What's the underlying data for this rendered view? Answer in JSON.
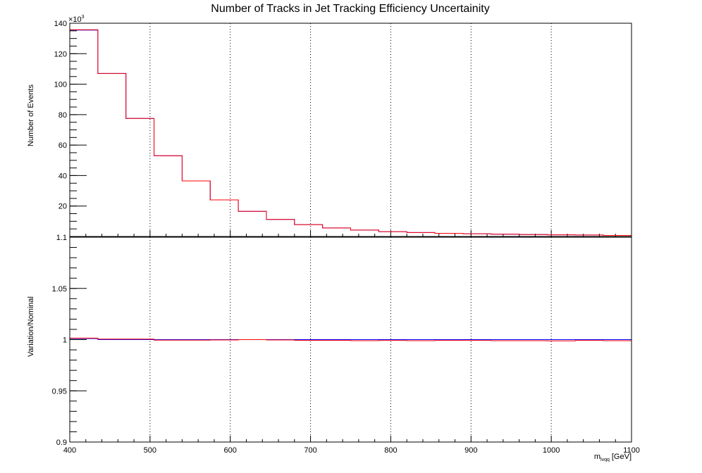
{
  "chart_data": [
    {
      "type": "line",
      "title": "Number of Tracks in Jet Tracking Efficiency Uncertainity",
      "xlabel": "",
      "ylabel": "Number of Events",
      "y_exponent_label": "×10",
      "y_exponent_power": "3",
      "xlim": [
        400,
        1100
      ],
      "ylim": [
        0,
        140
      ],
      "yticks": [
        {
          "value": 20,
          "label": "20"
        },
        {
          "value": 40,
          "label": "40"
        },
        {
          "value": 60,
          "label": "60"
        },
        {
          "value": 80,
          "label": "80"
        },
        {
          "value": 100,
          "label": "100"
        },
        {
          "value": 120,
          "label": "120"
        },
        {
          "value": 140,
          "label": "140"
        }
      ],
      "grid": "vertical-dotted",
      "bin_edges": [
        400,
        435,
        470,
        505,
        540,
        575,
        610,
        645,
        680,
        715,
        750,
        785,
        820,
        855,
        890,
        925,
        960,
        995,
        1030,
        1065,
        1100
      ],
      "series": [
        {
          "color": "#0000ff",
          "values": [
            135.5,
            107.0,
            77.5,
            53.0,
            36.5,
            24.0,
            16.5,
            11.2,
            7.8,
            5.6,
            4.2,
            3.2,
            2.6,
            2.1,
            1.8,
            1.5,
            1.3,
            1.1,
            1.0,
            0.7
          ]
        },
        {
          "color": "#ff0000",
          "values": [
            135.7,
            107.0,
            77.5,
            53.0,
            36.5,
            24.0,
            16.5,
            11.2,
            7.8,
            5.6,
            4.2,
            3.2,
            2.6,
            2.1,
            1.8,
            1.5,
            1.3,
            1.1,
            1.0,
            0.7
          ]
        }
      ]
    },
    {
      "type": "line",
      "title": "",
      "xlabel": "m",
      "xlabel_sub": "lvqq",
      "xlabel_unit": "[GeV]",
      "ylabel": "Variation/Nominal",
      "xlim": [
        400,
        1100
      ],
      "ylim": [
        0.9,
        1.1
      ],
      "xticks": [
        {
          "value": 400,
          "label": "400"
        },
        {
          "value": 500,
          "label": "500"
        },
        {
          "value": 600,
          "label": "600"
        },
        {
          "value": 700,
          "label": "700"
        },
        {
          "value": 800,
          "label": "800"
        },
        {
          "value": 900,
          "label": "900"
        },
        {
          "value": 1000,
          "label": "1000"
        },
        {
          "value": 1100,
          "label": "1100"
        }
      ],
      "yticks": [
        {
          "value": 0.9,
          "label": "0.9"
        },
        {
          "value": 0.95,
          "label": "0.95"
        },
        {
          "value": 1.0,
          "label": "1"
        },
        {
          "value": 1.05,
          "label": "1.05"
        },
        {
          "value": 1.1,
          "label": "1.1"
        }
      ],
      "grid": "vertical-dotted",
      "bin_edges": [
        400,
        435,
        470,
        505,
        540,
        575,
        610,
        645,
        680,
        715,
        750,
        785,
        820,
        855,
        890,
        925,
        960,
        995,
        1030,
        1065,
        1100
      ],
      "series": [
        {
          "color": "#0000ff",
          "values": [
            1.001,
            1.0,
            1.0,
            1.0,
            1.0,
            1.0,
            1.0,
            1.0,
            1.0,
            1.0,
            1.0,
            1.0,
            1.0,
            1.0,
            1.0,
            1.0,
            1.0,
            1.0,
            1.0,
            1.0
          ]
        },
        {
          "color": "#ff0000",
          "values": [
            1.0015,
            1.0005,
            1.0005,
            0.9995,
            0.9995,
            0.9997,
            1.0,
            0.9997,
            0.9993,
            0.9993,
            0.999,
            0.9992,
            0.999,
            0.9992,
            0.9992,
            0.999,
            0.999,
            0.9988,
            0.9992,
            0.999
          ]
        }
      ]
    }
  ]
}
